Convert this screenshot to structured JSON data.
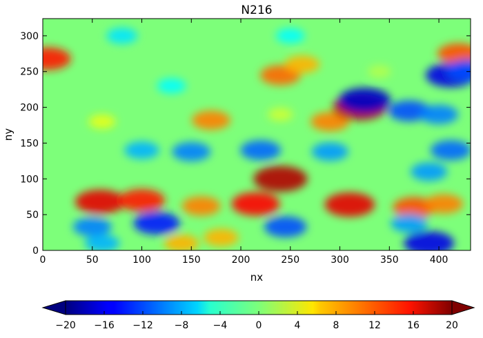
{
  "chart_data": {
    "type": "heatmap",
    "title": "N216",
    "xlabel": "nx",
    "ylabel": "ny",
    "xlim": [
      0,
      432
    ],
    "ylim": [
      0,
      324
    ],
    "x_ticks": [
      0,
      50,
      100,
      150,
      200,
      250,
      300,
      350,
      400
    ],
    "y_ticks": [
      0,
      50,
      100,
      150,
      200,
      250,
      300
    ],
    "grid": false,
    "colormap": "jet",
    "colorbar": {
      "orientation": "horizontal",
      "placement": "bottom",
      "extend": "both",
      "vmin": -20,
      "vmax": 20,
      "ticks": [
        "−20",
        "−16",
        "−12",
        "−8",
        "−4",
        "0",
        "4",
        "8",
        "12",
        "16",
        "20"
      ],
      "tick_values": [
        -20,
        -16,
        -12,
        -8,
        -4,
        0,
        4,
        8,
        12,
        16,
        20
      ]
    },
    "features": [
      {
        "x": 58,
        "y": 68,
        "value": 16
      },
      {
        "x": 100,
        "y": 70,
        "value": 14
      },
      {
        "x": 160,
        "y": 62,
        "value": 10
      },
      {
        "x": 215,
        "y": 65,
        "value": 15
      },
      {
        "x": 240,
        "y": 100,
        "value": 18
      },
      {
        "x": 310,
        "y": 64,
        "value": 16
      },
      {
        "x": 375,
        "y": 60,
        "value": 12
      },
      {
        "x": 405,
        "y": 65,
        "value": 10
      },
      {
        "x": 5,
        "y": 268,
        "value": 14
      },
      {
        "x": 420,
        "y": 275,
        "value": 12
      },
      {
        "x": 240,
        "y": 245,
        "value": 11
      },
      {
        "x": 170,
        "y": 182,
        "value": 10
      },
      {
        "x": 290,
        "y": 180,
        "value": 10
      },
      {
        "x": 320,
        "y": 200,
        "value": 18
      },
      {
        "x": 140,
        "y": 10,
        "value": 8
      },
      {
        "x": 180,
        "y": 18,
        "value": 8
      },
      {
        "x": 262,
        "y": 260,
        "value": 8
      },
      {
        "x": 150,
        "y": 138,
        "value": -10
      },
      {
        "x": 220,
        "y": 140,
        "value": -11
      },
      {
        "x": 290,
        "y": 138,
        "value": -9
      },
      {
        "x": 100,
        "y": 140,
        "value": -8
      },
      {
        "x": 325,
        "y": 210,
        "value": -17
      },
      {
        "x": 370,
        "y": 195,
        "value": -12
      },
      {
        "x": 400,
        "y": 190,
        "value": -10
      },
      {
        "x": 412,
        "y": 140,
        "value": -11
      },
      {
        "x": 390,
        "y": 110,
        "value": -9
      },
      {
        "x": 412,
        "y": 245,
        "value": -16
      },
      {
        "x": 430,
        "y": 252,
        "value": -12
      },
      {
        "x": 115,
        "y": 38,
        "value": -14
      },
      {
        "x": 50,
        "y": 33,
        "value": -10
      },
      {
        "x": 245,
        "y": 33,
        "value": -12
      },
      {
        "x": 370,
        "y": 38,
        "value": -9
      },
      {
        "x": 390,
        "y": 10,
        "value": -16
      },
      {
        "x": 60,
        "y": 10,
        "value": -8
      },
      {
        "x": 80,
        "y": 300,
        "value": -6
      },
      {
        "x": 250,
        "y": 300,
        "value": -5
      },
      {
        "x": 130,
        "y": 230,
        "value": -5
      },
      {
        "x": 60,
        "y": 180,
        "value": 4
      },
      {
        "x": 240,
        "y": 190,
        "value": 3
      },
      {
        "x": 340,
        "y": 250,
        "value": 2
      }
    ]
  }
}
